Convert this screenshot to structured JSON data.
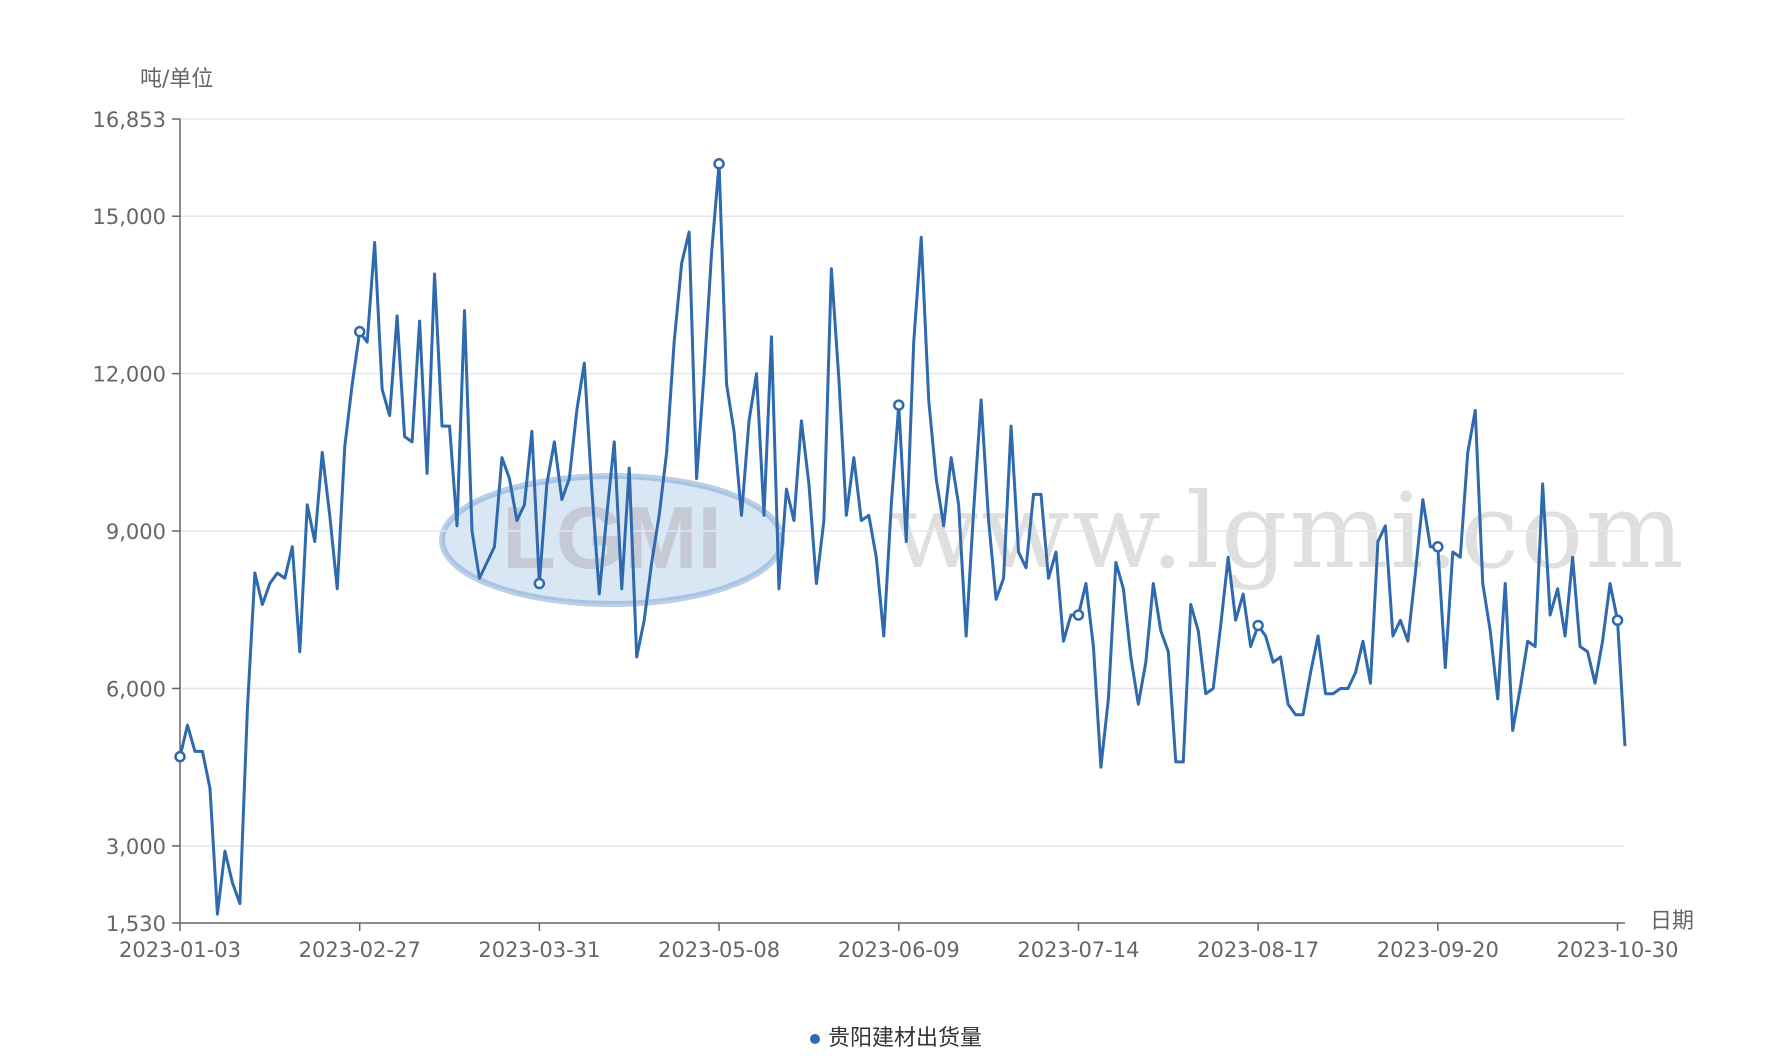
{
  "watermark": {
    "logo_text": "LGMI",
    "site_text": "www.lgmi.com"
  },
  "chart_data": {
    "type": "line",
    "title": "",
    "ylabel": "吨/单位",
    "xlabel": "日期",
    "ylim": [
      1530,
      16853
    ],
    "yticks": [
      1530,
      3000,
      6000,
      9000,
      12000,
      15000,
      16853
    ],
    "ytick_labels": [
      "1,530",
      "3,000",
      "6,000",
      "9,000",
      "12,000",
      "15,000",
      "16,853"
    ],
    "xtick_labels": [
      "2023-01-03",
      "2023-02-27",
      "2023-03-31",
      "2023-05-08",
      "2023-06-09",
      "2023-07-14",
      "2023-08-17",
      "2023-09-20",
      "2023-10-30"
    ],
    "grid": true,
    "legend_position": "bottom-center",
    "color": "#2e6aad",
    "series": [
      {
        "name": "贵阳建材出货量",
        "marker_indices": [
          0,
          24,
          48,
          72,
          96,
          120,
          144,
          168,
          192
        ],
        "values": [
          4700,
          5300,
          4800,
          4800,
          4100,
          1700,
          2900,
          2300,
          1900,
          5600,
          8200,
          7600,
          8000,
          8200,
          8100,
          8700,
          6700,
          9500,
          8800,
          10500,
          9300,
          7900,
          10600,
          11800,
          12800,
          12600,
          14500,
          11700,
          11200,
          13100,
          10800,
          10700,
          13000,
          10100,
          13900,
          11000,
          11000,
          9100,
          13200,
          9000,
          8100,
          8400,
          8700,
          10400,
          10000,
          9200,
          9500,
          10900,
          8000,
          9900,
          10700,
          9600,
          10000,
          11300,
          12200,
          9800,
          7800,
          9300,
          10700,
          7900,
          10200,
          6600,
          7300,
          8400,
          9300,
          10500,
          12600,
          14100,
          14700,
          10000,
          12000,
          14300,
          16000,
          11800,
          10900,
          9300,
          11100,
          12000,
          9300,
          12700,
          7900,
          9800,
          9200,
          11100,
          9900,
          8000,
          9200,
          14000,
          11900,
          9300,
          10400,
          9200,
          9300,
          8500,
          7000,
          9500,
          11400,
          8800,
          12600,
          14600,
          11500,
          10000,
          9100,
          10400,
          9500,
          7000,
          9400,
          11500,
          9200,
          7700,
          8100,
          11000,
          8600,
          8300,
          9700,
          9700,
          8100,
          8600,
          6900,
          7400,
          7400,
          8000,
          6800,
          4500,
          5800,
          8400,
          7900,
          6600,
          5700,
          6500,
          8000,
          7100,
          6700,
          4600,
          4600,
          7600,
          7100,
          5900,
          6000,
          7200,
          8500,
          7300,
          7800,
          6800,
          7200,
          7000,
          6500,
          6600,
          5700,
          5500,
          5500,
          6300,
          7000,
          5900,
          5900,
          6000,
          6000,
          6300,
          6900,
          6100,
          8800,
          9100,
          7000,
          7300,
          6900,
          8200,
          9600,
          8700,
          8700,
          6400,
          8600,
          8500,
          10500,
          11300,
          8000,
          7100,
          5800,
          8000,
          5200,
          6000,
          6900,
          6800,
          9900,
          7400,
          7900,
          7000,
          8500,
          6800,
          6700,
          6100,
          6900,
          8000,
          7300,
          4900
        ]
      }
    ]
  }
}
